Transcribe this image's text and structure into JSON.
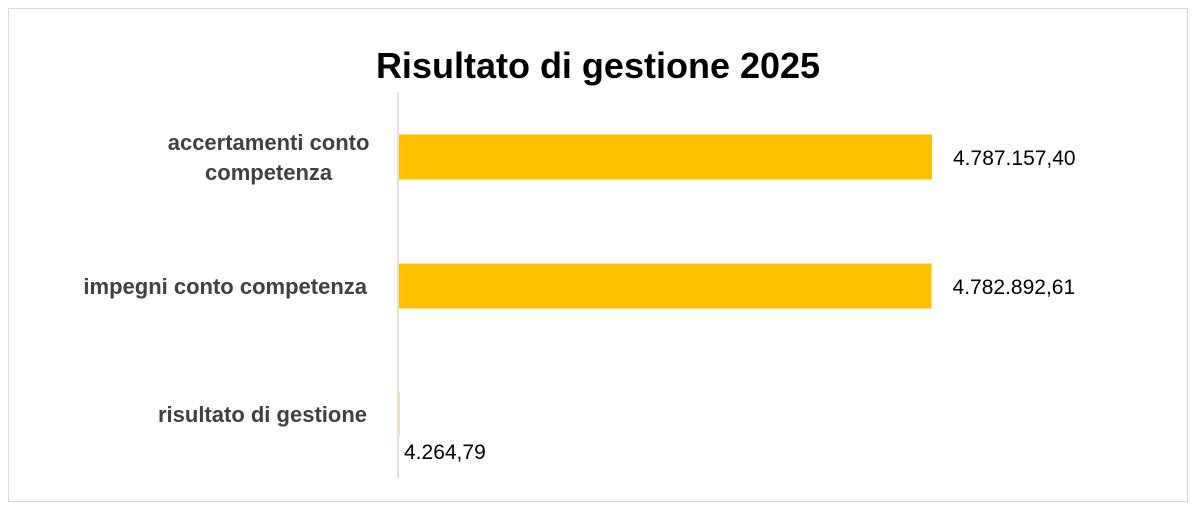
{
  "chart_data": {
    "type": "bar",
    "orientation": "horizontal",
    "title": "Risultato di gestione 2025",
    "categories": [
      [
        "accertamenti conto",
        "competenza"
      ],
      [
        "impegni conto competenza"
      ],
      [
        "risultato di gestione"
      ]
    ],
    "values": [
      4787157.4,
      4782892.61,
      4264.79
    ],
    "data_labels": [
      "4.787.157,40",
      "4.782.892,61",
      "4.264,79"
    ],
    "bar_color": "#FFC000",
    "axis_color": "#D9D9D9",
    "xlim": [
      0,
      4787157.4
    ],
    "legend": "none",
    "grid": false
  }
}
